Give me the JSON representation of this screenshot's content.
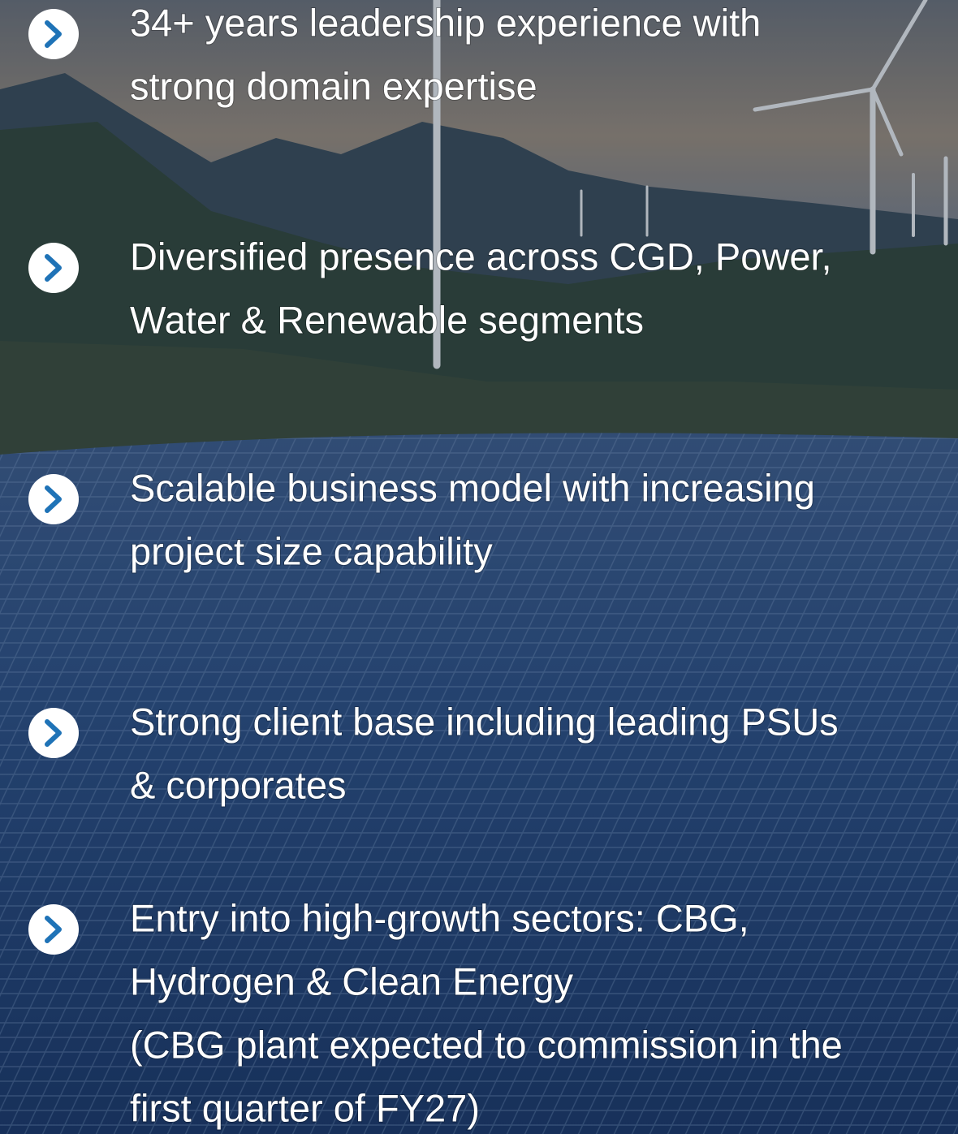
{
  "items": [
    {
      "lines": [
        "34+ years leadership experience with",
        "strong domain expertise"
      ]
    },
    {
      "lines": [
        "Diversified presence across CGD, Power,",
        "Water & Renewable segments"
      ]
    },
    {
      "lines": [
        "Scalable business model with increasing",
        "project size capability"
      ]
    },
    {
      "lines": [
        "Strong client base including leading PSUs",
        "& corporates"
      ]
    },
    {
      "lines": [
        "Entry into high-growth sectors: CBG,",
        "Hydrogen & Clean Energy",
        "(CBG plant expected to commission in the",
        "first quarter of FY27)"
      ]
    }
  ]
}
